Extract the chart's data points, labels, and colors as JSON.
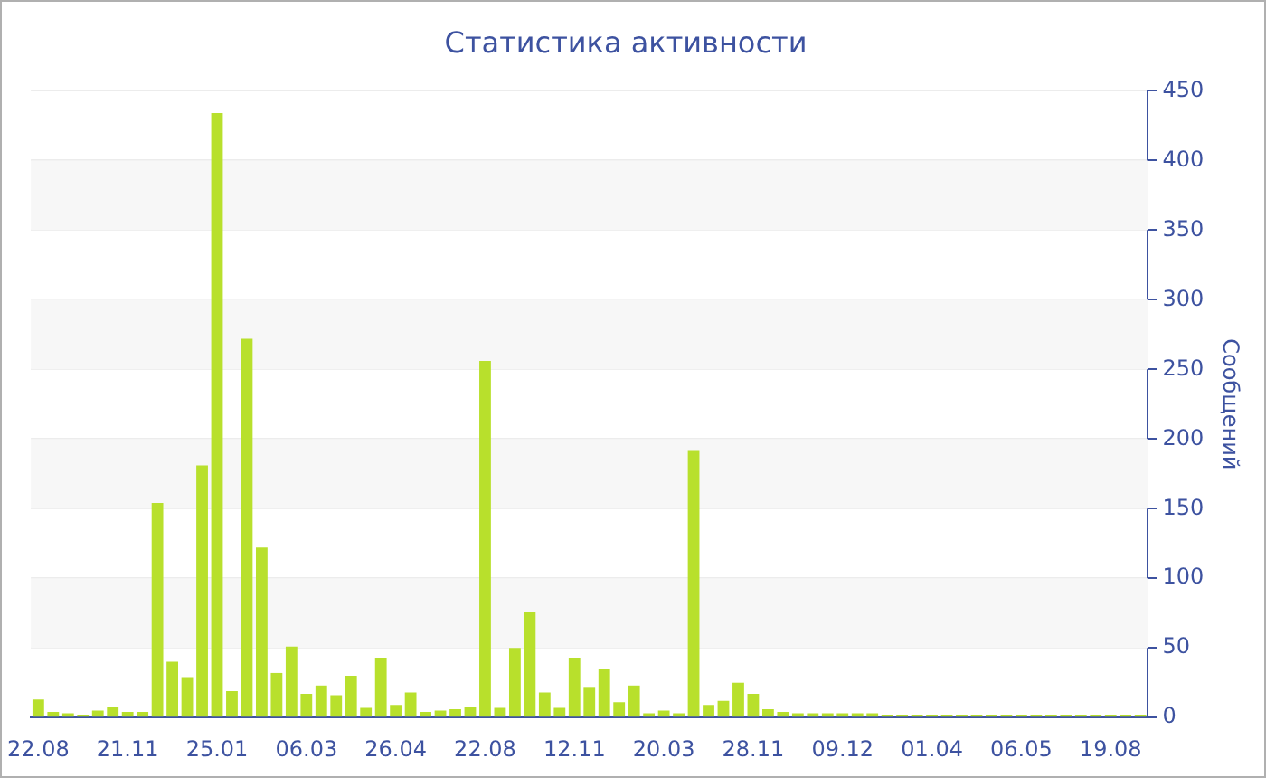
{
  "chart_data": {
    "type": "bar",
    "title": "Статистика активности",
    "ylabel": "Сообщений",
    "categories": [
      "22.08",
      null,
      null,
      null,
      null,
      null,
      "21.11",
      null,
      null,
      null,
      null,
      null,
      "25.01",
      null,
      null,
      null,
      null,
      null,
      "06.03",
      null,
      null,
      null,
      null,
      null,
      "26.04",
      null,
      null,
      null,
      null,
      null,
      "22.08",
      null,
      null,
      null,
      null,
      null,
      "12.11",
      null,
      null,
      null,
      null,
      null,
      "20.03",
      null,
      null,
      null,
      null,
      null,
      "28.11",
      null,
      null,
      null,
      null,
      null,
      "09.12",
      null,
      null,
      null,
      null,
      null,
      "01.04",
      null,
      null,
      null,
      null,
      null,
      "06.05",
      null,
      null,
      null,
      null,
      null,
      "19.08",
      null,
      null
    ],
    "values": [
      13,
      4,
      3,
      2,
      5,
      8,
      4,
      4,
      154,
      40,
      29,
      181,
      434,
      19,
      272,
      122,
      32,
      51,
      17,
      23,
      16,
      30,
      7,
      43,
      9,
      18,
      4,
      5,
      6,
      8,
      256,
      7,
      50,
      76,
      18,
      7,
      43,
      22,
      35,
      11,
      23,
      3,
      5,
      3,
      192,
      9,
      12,
      25,
      17,
      6,
      4,
      3,
      3,
      3,
      3,
      3,
      3,
      2,
      2,
      2,
      2,
      2,
      2,
      2,
      2,
      2,
      2,
      2,
      2,
      2,
      2,
      2,
      2,
      2,
      2
    ],
    "color": "#b8e02c",
    "ylim": [
      0,
      450
    ],
    "yticks": [
      0,
      50,
      100,
      150,
      200,
      250,
      300,
      350,
      400,
      450
    ],
    "grid": "y"
  }
}
